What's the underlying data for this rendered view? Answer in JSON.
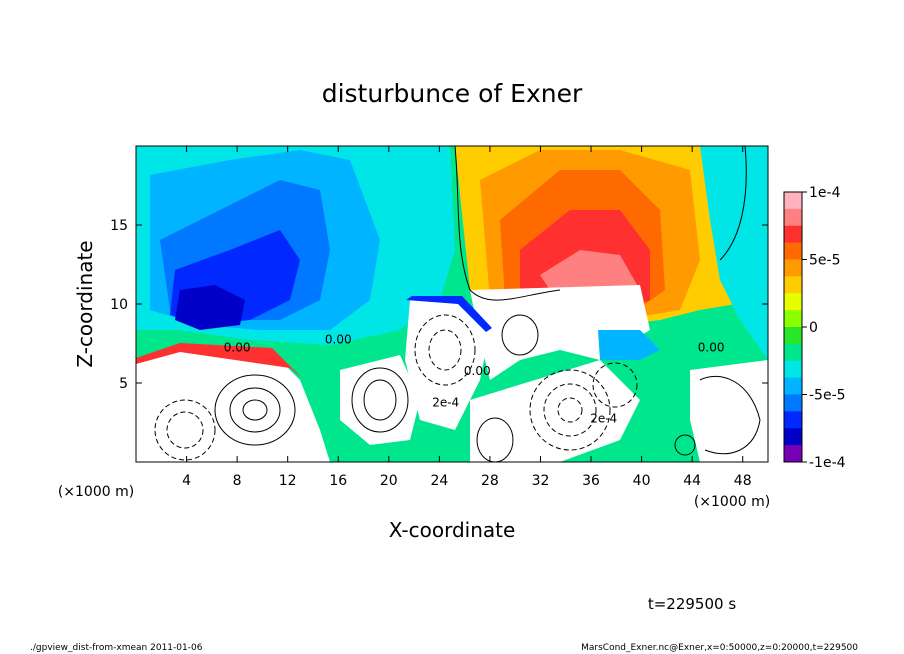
{
  "chart_data": {
    "type": "heatmap",
    "title": "disturbunce of Exner",
    "xlabel": "X-coordinate",
    "ylabel": "Z-coordinate",
    "x_unit_left": "(×1000 m)",
    "x_unit_right": "(×1000 m)",
    "xlim": [
      0,
      50
    ],
    "ylim": [
      0,
      20
    ],
    "x_ticks": [
      4,
      8,
      12,
      16,
      20,
      24,
      28,
      32,
      36,
      40,
      44,
      48
    ],
    "x_tick_labels": [
      "4",
      "8",
      "12",
      "16",
      "20",
      "24",
      "28",
      "32",
      "36",
      "40",
      "44",
      "48"
    ],
    "y_ticks": [
      5,
      10,
      15
    ],
    "y_tick_labels": [
      "5",
      "10",
      "15"
    ],
    "colorbar": {
      "min": -0.0001,
      "max": 0.0001,
      "tick_values": [
        0.0001,
        5e-05,
        0,
        -5e-05,
        -0.0001
      ],
      "tick_labels": [
        "1e-4",
        "5e-5",
        "0",
        "-5e-5",
        "-1e-4"
      ],
      "colors": [
        "#ffb3bf",
        "#ff8080",
        "#ff3030",
        "#ff6a00",
        "#ff9a00",
        "#ffcc00",
        "#e6ff00",
        "#8cff00",
        "#28e628",
        "#00e68c",
        "#00e6e6",
        "#00b4ff",
        "#0078ff",
        "#0028ff",
        "#0000c8",
        "#7800b4"
      ]
    },
    "contour_labels": [
      "0.00",
      "0.00",
      "2e-4",
      "0.00",
      "0.00",
      "2e-4"
    ],
    "features": [
      {
        "kind": "positive-max",
        "x": 35,
        "z": 14
      },
      {
        "kind": "negative-min",
        "x": 6,
        "z": 9
      },
      {
        "kind": "negative-min",
        "x": 47,
        "z": 9
      }
    ],
    "time_label": "t=229500 s",
    "footer_left": "./gpview_dist-from-xmean   2011-01-06",
    "footer_right": "MarsCond_Exner.nc@Exner,x=0:50000,z=0:20000,t=229500"
  }
}
